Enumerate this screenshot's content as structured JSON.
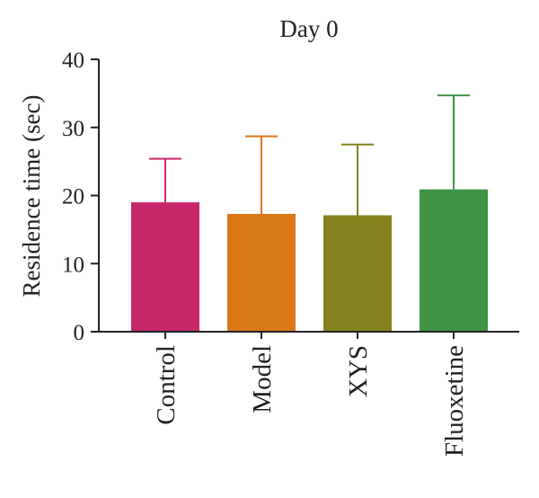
{
  "chart_data": {
    "type": "bar",
    "title": "Day 0",
    "xlabel": "",
    "ylabel": "Residence time (sec)",
    "ylim": [
      0,
      40
    ],
    "yticks": [
      0,
      10,
      20,
      30,
      40
    ],
    "categories": [
      "Control",
      "Model",
      "XYS",
      "Fluoxetine"
    ],
    "values": [
      19.0,
      17.3,
      17.1,
      20.9
    ],
    "error_upper": [
      6.4,
      11.4,
      10.4,
      13.8
    ],
    "colors": [
      "#c8286a",
      "#d87817",
      "#84821c",
      "#3e9345"
    ],
    "grid": false,
    "legend": "none"
  }
}
